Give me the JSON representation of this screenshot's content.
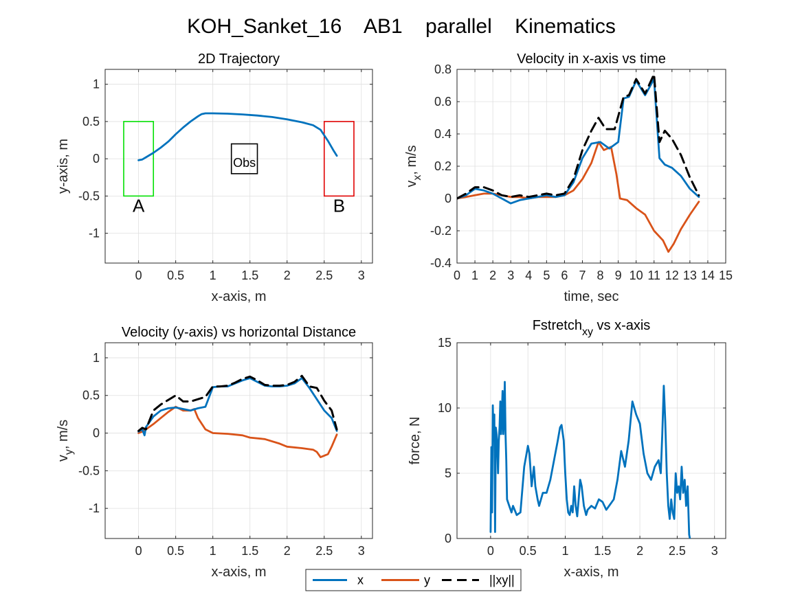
{
  "figure_title": "KOH_Sanket_16    AB1    parallel    Kinematics",
  "colors": {
    "x": "#0072BD",
    "y": "#D95319",
    "xy": "#000000",
    "start_box": "#00E000",
    "end_box": "#E00000",
    "obs_box": "#000000"
  },
  "legend": {
    "items": [
      {
        "key": "x",
        "label": "x",
        "style": "solid"
      },
      {
        "key": "y",
        "label": "y",
        "style": "solid"
      },
      {
        "key": "xy",
        "label": "||xy||",
        "style": "dashed"
      }
    ]
  },
  "chart_data": [
    {
      "id": "traj",
      "type": "line",
      "title": "2D Trajectory",
      "xlabel": "x-axis, m",
      "ylabel": "y-axis, m",
      "xlim": [
        -0.45,
        3.15
      ],
      "ylim": [
        -1.4,
        1.2
      ],
      "xticks": [
        0,
        0.5,
        1,
        1.5,
        2,
        2.5,
        3
      ],
      "yticks": [
        -1,
        -0.5,
        0,
        0.5,
        1
      ],
      "grid": true,
      "annotations": {
        "start": {
          "label": "A",
          "rect": [
            -0.2,
            -0.5,
            0.2,
            0.5
          ]
        },
        "end": {
          "label": "B",
          "rect": [
            2.5,
            -0.5,
            2.9,
            0.5
          ]
        },
        "obstacle": {
          "label": "Obs",
          "rect": [
            1.25,
            -0.2,
            1.6,
            0.2
          ]
        }
      },
      "series": [
        {
          "key": "x",
          "x": [
            0,
            0.05,
            0.1,
            0.2,
            0.3,
            0.4,
            0.5,
            0.6,
            0.7,
            0.8,
            0.85,
            0.9,
            1.0,
            1.2,
            1.4,
            1.6,
            1.8,
            2.0,
            2.2,
            2.35,
            2.45,
            2.55,
            2.62,
            2.67
          ],
          "y": [
            -0.02,
            -0.01,
            0.02,
            0.08,
            0.15,
            0.23,
            0.33,
            0.42,
            0.5,
            0.57,
            0.6,
            0.61,
            0.61,
            0.605,
            0.595,
            0.58,
            0.56,
            0.53,
            0.49,
            0.45,
            0.39,
            0.24,
            0.12,
            0.04
          ]
        }
      ]
    },
    {
      "id": "vx",
      "type": "line",
      "title": "Velocity in x-axis vs time",
      "xlabel": "time, sec",
      "ylabel": "v",
      "ylabel_sub": "x",
      "ylabel_suffix": ", m/s",
      "xlim": [
        0,
        15
      ],
      "ylim": [
        -0.4,
        0.8
      ],
      "xticks": [
        0,
        1,
        2,
        3,
        4,
        5,
        6,
        7,
        8,
        9,
        10,
        11,
        12,
        13,
        14,
        15
      ],
      "yticks": [
        -0.4,
        -0.2,
        0,
        0.2,
        0.4,
        0.6,
        0.8
      ],
      "grid": true,
      "series": [
        {
          "key": "x",
          "x": [
            0,
            0.5,
            1,
            1.5,
            2,
            2.5,
            3,
            3.5,
            4,
            4.5,
            5,
            5.5,
            6,
            6.5,
            7,
            7.5,
            8,
            8.5,
            9,
            9.3,
            9.6,
            10,
            10.5,
            11,
            11.3,
            11.6,
            12,
            12.5,
            13,
            13.5
          ],
          "y": [
            0,
            0.02,
            0.06,
            0.05,
            0.03,
            0,
            -0.03,
            -0.01,
            0,
            0.01,
            0.02,
            0.01,
            0.02,
            0.1,
            0.25,
            0.34,
            0.35,
            0.31,
            0.35,
            0.62,
            0.63,
            0.73,
            0.64,
            0.74,
            0.25,
            0.21,
            0.19,
            0.14,
            0.06,
            0.01
          ]
        },
        {
          "key": "y",
          "x": [
            0,
            0.5,
            1,
            1.5,
            2,
            2.5,
            3,
            3.5,
            4,
            4.5,
            5,
            5.5,
            6,
            6.5,
            7,
            7.5,
            7.9,
            8.2,
            8.6,
            8.9,
            9.1,
            9.5,
            10,
            10.5,
            11,
            11.5,
            11.8,
            12.1,
            12.5,
            13,
            13.5
          ],
          "y": [
            0,
            0.01,
            0.02,
            0.03,
            0.03,
            0.02,
            0.01,
            0.01,
            0,
            0.01,
            0.01,
            0.01,
            0.02,
            0.05,
            0.12,
            0.22,
            0.35,
            0.3,
            0.32,
            0.15,
            0,
            -0.01,
            -0.06,
            -0.1,
            -0.2,
            -0.26,
            -0.33,
            -0.28,
            -0.19,
            -0.1,
            -0.02
          ]
        },
        {
          "key": "xy",
          "x": [
            0,
            0.5,
            1,
            1.5,
            2,
            2.5,
            3,
            3.5,
            4,
            4.5,
            5,
            5.5,
            6,
            6.5,
            7,
            7.5,
            7.9,
            8.3,
            8.8,
            9.3,
            9.6,
            10,
            10.5,
            11,
            11.3,
            11.6,
            12,
            12.5,
            13,
            13.5
          ],
          "y": [
            0,
            0.03,
            0.07,
            0.07,
            0.05,
            0.02,
            0.01,
            0.02,
            0.01,
            0.02,
            0.03,
            0.02,
            0.03,
            0.12,
            0.3,
            0.42,
            0.5,
            0.43,
            0.43,
            0.63,
            0.64,
            0.74,
            0.65,
            0.77,
            0.35,
            0.42,
            0.37,
            0.27,
            0.13,
            0.02
          ]
        }
      ]
    },
    {
      "id": "vy",
      "type": "line",
      "title": "Velocity (y-axis) vs horizontal Distance",
      "xlabel": "x-axis, m",
      "ylabel": "v",
      "ylabel_sub": "y",
      "ylabel_suffix": ", m/s",
      "xlim": [
        -0.45,
        3.15
      ],
      "ylim": [
        -1.4,
        1.2
      ],
      "xticks": [
        0,
        0.5,
        1,
        1.5,
        2,
        2.5,
        3
      ],
      "yticks": [
        -1,
        -0.5,
        0,
        0.5,
        1
      ],
      "grid": true,
      "series": [
        {
          "key": "x",
          "x": [
            0,
            0.05,
            0.08,
            0.1,
            0.2,
            0.3,
            0.4,
            0.5,
            0.6,
            0.7,
            0.8,
            0.9,
            1.0,
            1.1,
            1.2,
            1.3,
            1.4,
            1.5,
            1.6,
            1.7,
            1.8,
            1.9,
            2.0,
            2.1,
            2.2,
            2.3,
            2.4,
            2.5,
            2.6,
            2.67
          ],
          "y": [
            0.02,
            0.05,
            -0.03,
            0.08,
            0.22,
            0.3,
            0.33,
            0.34,
            0.32,
            0.3,
            0.33,
            0.35,
            0.61,
            0.62,
            0.62,
            0.66,
            0.7,
            0.73,
            0.68,
            0.63,
            0.62,
            0.62,
            0.63,
            0.66,
            0.73,
            0.6,
            0.45,
            0.3,
            0.2,
            0.03
          ]
        },
        {
          "key": "y",
          "x": [
            0,
            0.05,
            0.1,
            0.2,
            0.3,
            0.4,
            0.5,
            0.6,
            0.7,
            0.75,
            0.8,
            0.9,
            1.0,
            1.2,
            1.4,
            1.5,
            1.7,
            1.9,
            2.0,
            2.2,
            2.35,
            2.4,
            2.45,
            2.5,
            2.55,
            2.6,
            2.67
          ],
          "y": [
            0,
            0.02,
            0.05,
            0.12,
            0.2,
            0.28,
            0.35,
            0.3,
            0.3,
            0.32,
            0.2,
            0.05,
            0,
            -0.01,
            -0.03,
            -0.06,
            -0.08,
            -0.14,
            -0.18,
            -0.2,
            -0.22,
            -0.25,
            -0.32,
            -0.3,
            -0.28,
            -0.18,
            -0.02
          ]
        },
        {
          "key": "xy",
          "x": [
            0,
            0.05,
            0.1,
            0.2,
            0.3,
            0.4,
            0.5,
            0.6,
            0.7,
            0.8,
            0.9,
            1.0,
            1.1,
            1.2,
            1.3,
            1.4,
            1.5,
            1.6,
            1.7,
            1.8,
            1.9,
            2.0,
            2.1,
            2.2,
            2.3,
            2.4,
            2.5,
            2.6,
            2.67
          ],
          "y": [
            0.03,
            0.07,
            0.05,
            0.3,
            0.38,
            0.44,
            0.5,
            0.42,
            0.42,
            0.45,
            0.48,
            0.62,
            0.62,
            0.63,
            0.67,
            0.72,
            0.75,
            0.7,
            0.64,
            0.63,
            0.63,
            0.64,
            0.68,
            0.76,
            0.62,
            0.6,
            0.43,
            0.3,
            0.05
          ]
        }
      ]
    },
    {
      "id": "force",
      "type": "line",
      "title": "Fstretch",
      "title_sub": "xy",
      "title_suffix": " vs x-axis",
      "xlabel": "x-axis, m",
      "ylabel": "force, N",
      "xlim": [
        -0.45,
        3.15
      ],
      "ylim": [
        0,
        15
      ],
      "xticks": [
        0,
        0.5,
        1,
        1.5,
        2,
        2.5,
        3
      ],
      "yticks": [
        0,
        5,
        10,
        15
      ],
      "grid": true,
      "series": [
        {
          "key": "x",
          "x": [
            0,
            0.01,
            0.02,
            0.03,
            0.04,
            0.05,
            0.06,
            0.07,
            0.08,
            0.09,
            0.1,
            0.11,
            0.12,
            0.13,
            0.14,
            0.15,
            0.16,
            0.17,
            0.18,
            0.19,
            0.2,
            0.21,
            0.22,
            0.25,
            0.28,
            0.3,
            0.35,
            0.4,
            0.45,
            0.5,
            0.52,
            0.55,
            0.58,
            0.6,
            0.63,
            0.65,
            0.7,
            0.75,
            0.8,
            0.85,
            0.9,
            0.93,
            0.95,
            0.98,
            1.0,
            1.02,
            1.04,
            1.06,
            1.08,
            1.1,
            1.12,
            1.14,
            1.16,
            1.18,
            1.2,
            1.22,
            1.25,
            1.28,
            1.3,
            1.35,
            1.4,
            1.45,
            1.5,
            1.55,
            1.6,
            1.65,
            1.7,
            1.75,
            1.8,
            1.85,
            1.9,
            1.95,
            2.0,
            2.05,
            2.1,
            2.15,
            2.2,
            2.25,
            2.28,
            2.3,
            2.32,
            2.34,
            2.36,
            2.38,
            2.4,
            2.42,
            2.44,
            2.46,
            2.48,
            2.5,
            2.52,
            2.54,
            2.56,
            2.58,
            2.6,
            2.62,
            2.64,
            2.66,
            2.67
          ],
          "y": [
            0.5,
            7.0,
            2.0,
            10.2,
            7.5,
            9.5,
            0.5,
            8.5,
            8.0,
            7.0,
            5.0,
            7.5,
            8.5,
            10.5,
            8.0,
            9.5,
            11.3,
            8.0,
            9.0,
            12.0,
            8.0,
            6.0,
            3.0,
            2.5,
            2.0,
            2.5,
            1.8,
            2.0,
            5.5,
            7.1,
            6.5,
            4.0,
            5.5,
            4.0,
            3.0,
            2.5,
            3.5,
            3.5,
            4.5,
            6.0,
            7.5,
            8.5,
            8.7,
            7.5,
            5.0,
            3.0,
            2.0,
            1.8,
            2.5,
            2.0,
            4.0,
            2.5,
            1.7,
            3.0,
            4.5,
            4.0,
            2.5,
            1.8,
            2.2,
            2.5,
            2.3,
            3.0,
            2.8,
            2.2,
            2.6,
            3.0,
            4.5,
            6.7,
            5.5,
            7.5,
            10.5,
            9.5,
            8.8,
            6.5,
            5.0,
            4.5,
            5.5,
            6.0,
            5.0,
            8.0,
            11.7,
            9.0,
            5.0,
            2.5,
            1.5,
            3.0,
            2.0,
            1.5,
            5.0,
            3.5,
            4.0,
            3.0,
            5.5,
            3.5,
            4.5,
            2.5,
            4.0,
            0.3,
            0
          ]
        }
      ]
    }
  ]
}
